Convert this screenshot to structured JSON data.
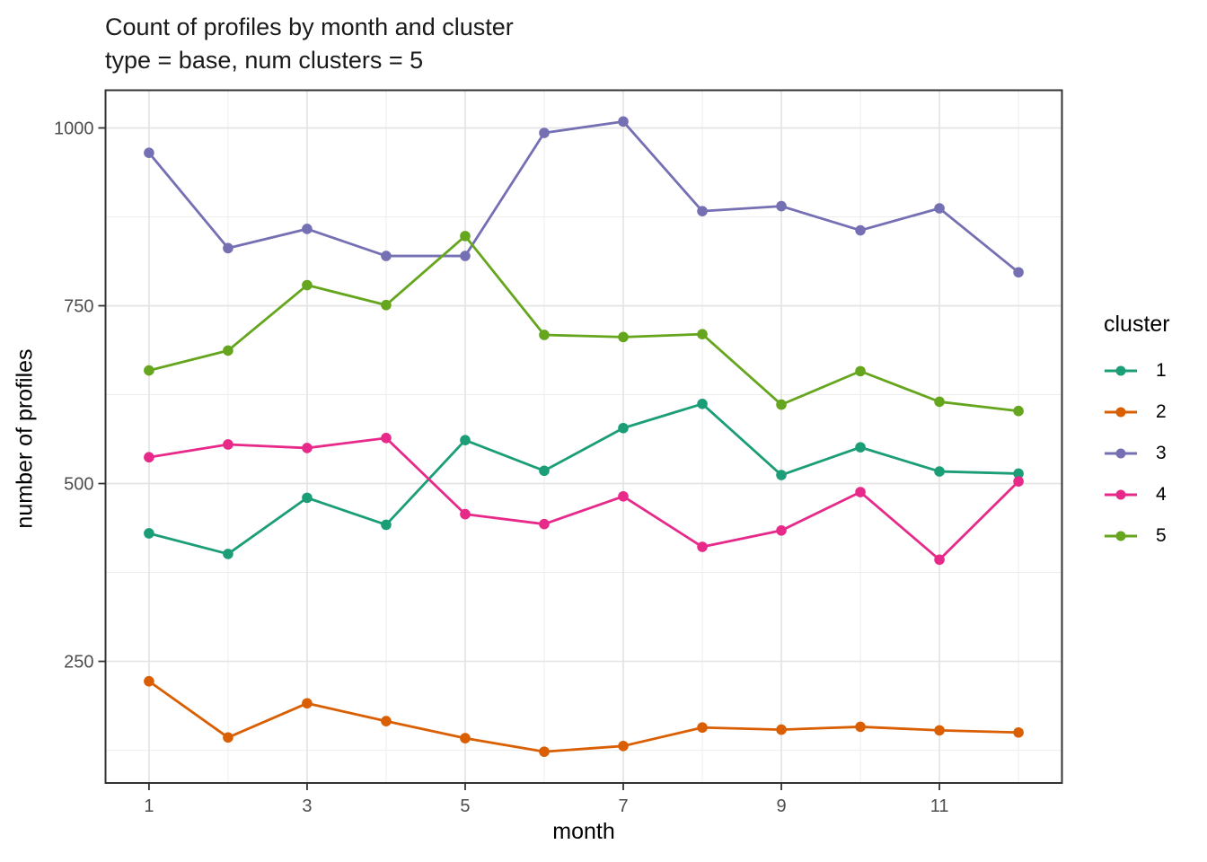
{
  "title": {
    "line1": "Count of profiles by month and cluster",
    "line2": "type = base, num clusters = 5"
  },
  "chart_data": {
    "type": "line",
    "title": "Count of profiles by month and cluster",
    "subtitle": "type = base, num clusters = 5",
    "xlabel": "month",
    "ylabel": "number of profiles",
    "x": [
      1,
      2,
      3,
      4,
      5,
      6,
      7,
      8,
      9,
      10,
      11,
      12
    ],
    "series": [
      {
        "name": "1",
        "color": "#1B9E77",
        "values": [
          430,
          401,
          480,
          442,
          561,
          518,
          578,
          612,
          512,
          551,
          517,
          514
        ]
      },
      {
        "name": "2",
        "color": "#D95F02",
        "values": [
          222,
          143,
          191,
          166,
          142,
          123,
          131,
          157,
          154,
          158,
          153,
          150
        ]
      },
      {
        "name": "3",
        "color": "#7570B3",
        "values": [
          965,
          831,
          858,
          820,
          820,
          993,
          1009,
          883,
          890,
          856,
          887,
          797
        ]
      },
      {
        "name": "4",
        "color": "#E7298A",
        "values": [
          537,
          555,
          550,
          564,
          457,
          443,
          482,
          411,
          434,
          488,
          393,
          503
        ]
      },
      {
        "name": "5",
        "color": "#66A61E",
        "values": [
          659,
          687,
          779,
          751,
          848,
          709,
          706,
          710,
          611,
          658,
          615,
          602
        ]
      }
    ],
    "xticks": [
      1,
      3,
      5,
      7,
      9,
      11
    ],
    "xticks_minor": [
      2,
      4,
      6,
      8,
      10,
      12
    ],
    "yticks": [
      250,
      500,
      750,
      1000
    ],
    "yticks_minor": [
      125,
      375,
      625,
      875
    ],
    "xlim": [
      0.45,
      12.55
    ],
    "ylim": [
      79,
      1053
    ],
    "grid": "major+minor horizontal and vertical, light gray on white panel",
    "legend": {
      "title": "cluster",
      "position": "right",
      "entries": [
        "1",
        "2",
        "3",
        "4",
        "5"
      ]
    }
  },
  "theme": {
    "panel_background": "#FFFFFF",
    "panel_border": "#333333",
    "grid_major": "#E4E4E4",
    "grid_minor": "#EDEDED",
    "tick_color": "#333333",
    "tick_label_color": "#4D4D4D",
    "text_color": "#000000"
  }
}
